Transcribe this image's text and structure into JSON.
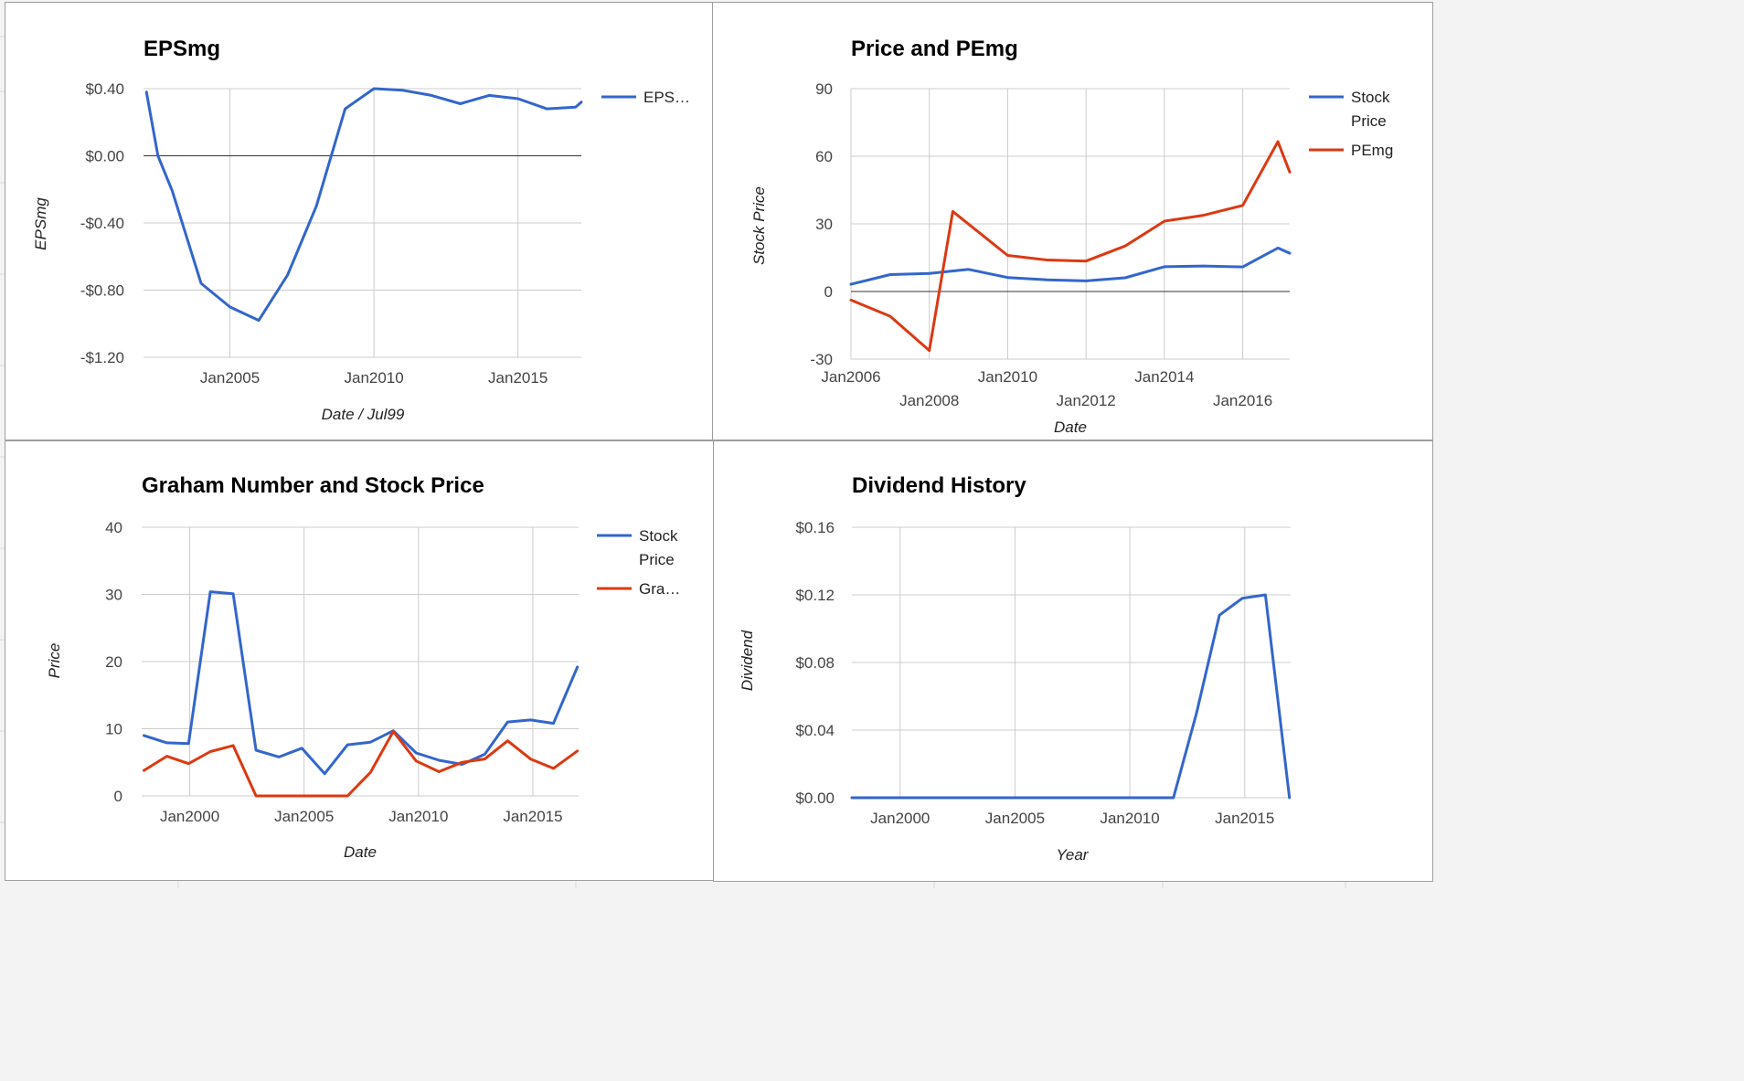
{
  "chart_data": [
    {
      "id": "p1",
      "type": "line",
      "title": "EPSmg",
      "xlabel": "Date / Jul99",
      "ylabel": "EPSmg",
      "x_type": "year",
      "xlim": [
        2002.0,
        2017.2
      ],
      "ylim": [
        -1.2,
        0.4
      ],
      "yticks": [
        0.4,
        0.0,
        -0.4,
        -0.8,
        -1.2
      ],
      "ytick_labels": [
        "$0.40",
        "$0.00",
        "-$0.40",
        "-$0.80",
        "-$1.20"
      ],
      "xticks": [
        2005,
        2010,
        2015
      ],
      "xtick_labels": [
        "Jan2005",
        "Jan2010",
        "Jan2015"
      ],
      "grid": true,
      "legend_position": "right",
      "legend": [
        "EPS…"
      ],
      "series": [
        {
          "name": "EPSmg",
          "color": "#3366cc",
          "x": [
            2002.1,
            2002.5,
            2003.0,
            2004.0,
            2005.0,
            2006.0,
            2007.0,
            2008.0,
            2009.0,
            2010.0,
            2011.0,
            2012.0,
            2013.0,
            2014.0,
            2015.0,
            2016.0,
            2017.0,
            2017.2
          ],
          "y": [
            0.38,
            0.0,
            -0.21,
            -0.76,
            -0.9,
            -0.98,
            -0.71,
            -0.3,
            0.28,
            0.4,
            0.39,
            0.36,
            0.31,
            0.36,
            0.34,
            0.28,
            0.29,
            0.32
          ]
        }
      ]
    },
    {
      "id": "p2",
      "type": "line",
      "title": "Price and PEmg",
      "xlabel": "Date",
      "ylabel": "Stock Price",
      "x_type": "year",
      "xlim": [
        2006.0,
        2017.2
      ],
      "ylim": [
        -30,
        90
      ],
      "yticks": [
        90,
        60,
        30,
        0,
        -30
      ],
      "ytick_labels": [
        "90",
        "60",
        "30",
        "0",
        "-30"
      ],
      "xticks": [
        2006,
        2008,
        2010,
        2012,
        2014,
        2016
      ],
      "xtick_labels": [
        "Jan2006",
        "Jan2008",
        "Jan2010",
        "Jan2012",
        "Jan2014",
        "Jan2016"
      ],
      "grid": true,
      "legend_position": "right",
      "legend": [
        [
          "Stock",
          "Price"
        ],
        [
          "PEmg"
        ]
      ],
      "series": [
        {
          "name": "Stock Price",
          "color": "#3366cc",
          "x": [
            2006.0,
            2007.0,
            2008.0,
            2009.0,
            2010.0,
            2011.0,
            2012.0,
            2013.0,
            2014.0,
            2015.0,
            2016.0,
            2016.9,
            2017.2
          ],
          "y": [
            3.2,
            7.5,
            8.0,
            9.8,
            6.2,
            5.2,
            4.7,
            6.1,
            11.0,
            11.3,
            10.9,
            19.3,
            17.0
          ]
        },
        {
          "name": "PEmg",
          "color": "#dc3912",
          "x": [
            2006.0,
            2007.0,
            2008.0,
            2008.6,
            2010.0,
            2011.0,
            2012.0,
            2013.0,
            2014.0,
            2015.0,
            2016.0,
            2016.9,
            2017.2
          ],
          "y": [
            -3.8,
            -11.0,
            -26.2,
            35.5,
            16.0,
            14.0,
            13.5,
            20.2,
            31.2,
            33.8,
            38.2,
            66.5,
            53.0
          ]
        }
      ]
    },
    {
      "id": "p3",
      "type": "line",
      "title": "Graham Number and Stock Price",
      "xlabel": "Date",
      "ylabel": "Price",
      "x_type": "year",
      "xlim": [
        1997.9,
        2017.0
      ],
      "ylim": [
        0,
        40
      ],
      "yticks": [
        40,
        30,
        20,
        10,
        0
      ],
      "ytick_labels": [
        "40",
        "30",
        "20",
        "10",
        "0"
      ],
      "xticks": [
        2000,
        2005,
        2010,
        2015
      ],
      "xtick_labels": [
        "Jan2000",
        "Jan2005",
        "Jan2010",
        "Jan2015"
      ],
      "grid": true,
      "legend_position": "right",
      "legend": [
        [
          "Stock",
          "Price"
        ],
        [
          "Gra…"
        ]
      ],
      "series": [
        {
          "name": "Stock Price",
          "color": "#3366cc",
          "x": [
            1998.0,
            1999.0,
            1999.95,
            2000.9,
            2001.9,
            2002.9,
            2003.9,
            2004.9,
            2005.9,
            2006.9,
            2007.9,
            2008.9,
            2009.9,
            2010.9,
            2011.9,
            2012.9,
            2013.9,
            2014.9,
            2015.9,
            2016.95
          ],
          "y": [
            9.0,
            7.9,
            7.8,
            30.4,
            30.1,
            6.8,
            5.8,
            7.1,
            3.3,
            7.6,
            8.0,
            9.7,
            6.4,
            5.3,
            4.7,
            6.2,
            11.0,
            11.3,
            10.8,
            19.2
          ]
        },
        {
          "name": "Graham Number",
          "color": "#dc3912",
          "x": [
            1998.0,
            1999.0,
            1999.95,
            2000.9,
            2001.9,
            2002.9,
            2003.9,
            2004.9,
            2005.9,
            2006.9,
            2007.9,
            2008.9,
            2009.9,
            2010.9,
            2011.9,
            2012.9,
            2013.9,
            2014.9,
            2015.9,
            2016.95
          ],
          "y": [
            3.8,
            5.9,
            4.8,
            6.6,
            7.5,
            0.0,
            0.0,
            0.0,
            0.0,
            0.0,
            3.5,
            9.6,
            5.2,
            3.6,
            5.0,
            5.5,
            8.2,
            5.5,
            4.1,
            6.7
          ]
        }
      ]
    },
    {
      "id": "p4",
      "type": "line",
      "title": "Dividend History",
      "xlabel": "Year",
      "ylabel": "Dividend",
      "x_type": "year",
      "xlim": [
        1997.9,
        2017.0
      ],
      "ylim": [
        0,
        0.16
      ],
      "yticks": [
        0.16,
        0.12,
        0.08,
        0.04,
        0.0
      ],
      "ytick_labels": [
        "$0.16",
        "$0.12",
        "$0.08",
        "$0.04",
        "$0.00"
      ],
      "xticks": [
        2000,
        2005,
        2010,
        2015
      ],
      "xtick_labels": [
        "Jan2000",
        "Jan2005",
        "Jan2010",
        "Jan2015"
      ],
      "grid": true,
      "legend_position": "none",
      "legend": [],
      "series": [
        {
          "name": "Dividend",
          "color": "#3366cc",
          "x": [
            1997.9,
            2011.9,
            2012.9,
            2013.9,
            2014.9,
            2015.9,
            2016.95
          ],
          "y": [
            0.0,
            0.0,
            0.05,
            0.108,
            0.118,
            0.12,
            0.0
          ]
        }
      ]
    }
  ]
}
